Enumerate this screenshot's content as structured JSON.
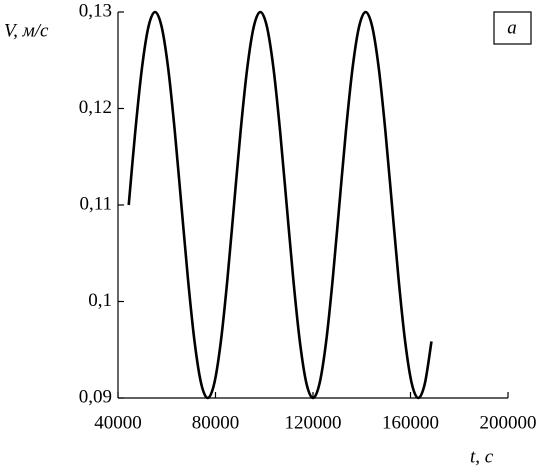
{
  "chart_data": {
    "type": "line",
    "ylabel": "V, м/с",
    "xlabel": "t, с",
    "annotation": "a",
    "xlim": [
      40000,
      200000
    ],
    "xticks": [
      40000,
      80000,
      120000,
      160000,
      200000
    ],
    "ylim": [
      0.09,
      0.13
    ],
    "yticks": [
      {
        "value": 0.09,
        "label": "0,09"
      },
      {
        "value": 0.1,
        "label": "0,1"
      },
      {
        "value": 0.11,
        "label": "0,11"
      },
      {
        "value": 0.12,
        "label": "0,12"
      },
      {
        "value": 0.13,
        "label": "0,13"
      }
    ],
    "x": [
      44400,
      47100,
      49800,
      52500,
      55200,
      57900,
      60600,
      63300,
      66000,
      68700,
      71400,
      74100,
      76800,
      79500,
      82200,
      84900,
      87600,
      90300,
      93000,
      95700,
      98400,
      101100,
      103800,
      106500,
      109200,
      111900,
      114600,
      117300,
      120000,
      122700,
      125400,
      128100,
      130800,
      133500,
      136200,
      138900,
      141600,
      144300,
      147000,
      149700,
      152400,
      155100,
      157800,
      160500,
      163200,
      165900,
      168600
    ],
    "series": [
      {
        "color": "#000000",
        "values": [
          0.11,
          0.11765,
          0.12414,
          0.12848,
          0.13,
          0.12848,
          0.12414,
          0.11765,
          0.11,
          0.10235,
          0.09586,
          0.09152,
          0.09,
          0.09152,
          0.09586,
          0.10235,
          0.11,
          0.11765,
          0.12414,
          0.12848,
          0.13,
          0.12848,
          0.12414,
          0.11765,
          0.11,
          0.10235,
          0.09586,
          0.09152,
          0.09,
          0.09152,
          0.09586,
          0.10235,
          0.11,
          0.11765,
          0.12414,
          0.12848,
          0.13,
          0.12848,
          0.12414,
          0.11765,
          0.11,
          0.10235,
          0.09586,
          0.09152,
          0.09,
          0.09152,
          0.09586
        ]
      }
    ]
  }
}
